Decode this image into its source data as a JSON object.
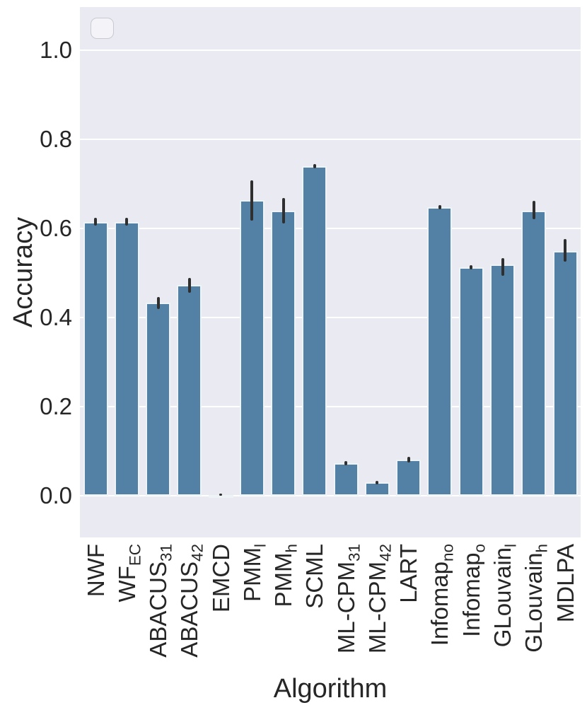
{
  "chart_data": {
    "type": "bar",
    "title": "",
    "xlabel": "Algorithm",
    "ylabel": "Accuracy",
    "yticks": [
      "0.0",
      "0.2",
      "0.4",
      "0.6",
      "0.8",
      "1.0"
    ],
    "ytick_values": [
      0.0,
      0.2,
      0.4,
      0.6,
      0.8,
      1.0
    ],
    "ylim": [
      -0.09,
      1.1
    ],
    "grid": "horizontal-white-on-gray",
    "legend": {
      "visible": true,
      "entries": []
    },
    "colors": {
      "bar_fill": "#5381A5",
      "bar_edge": "rgba(255,255,255,0.9)",
      "error_bar": "#2f2f2f",
      "plot_background": "#EAEAF2",
      "text": "#262626"
    },
    "categories": [
      "NWF",
      "WF_EC",
      "ABACUS_31",
      "ABACUS_42",
      "EMCD",
      "PMM_l",
      "PMM_h",
      "SCML",
      "ML-CPM_31",
      "ML-CPM_42",
      "LART",
      "Infomap_no",
      "Infomap_o",
      "GLouvain_l",
      "GLouvain_h",
      "MDLPA"
    ],
    "categories_rich": [
      {
        "main": "NWF",
        "sub": ""
      },
      {
        "main": "WF",
        "sub": "EC"
      },
      {
        "main": "ABACUS",
        "sub": "31"
      },
      {
        "main": "ABACUS",
        "sub": "42"
      },
      {
        "main": "EMCD",
        "sub": ""
      },
      {
        "main": "PMM",
        "sub": "l"
      },
      {
        "main": "PMM",
        "sub": "h"
      },
      {
        "main": "SCML",
        "sub": ""
      },
      {
        "main": "ML-CPM",
        "sub": "31"
      },
      {
        "main": "ML-CPM",
        "sub": "42"
      },
      {
        "main": "LART",
        "sub": ""
      },
      {
        "main": "Infomap",
        "sub": "no"
      },
      {
        "main": "Infomap",
        "sub": "o"
      },
      {
        "main": "GLouvain",
        "sub": "l"
      },
      {
        "main": "GLouvain",
        "sub": "h"
      },
      {
        "main": "MDLPA",
        "sub": ""
      }
    ],
    "values": [
      0.615,
      0.615,
      0.433,
      0.473,
      0.002,
      0.663,
      0.64,
      0.74,
      0.073,
      0.03,
      0.081,
      0.648,
      0.513,
      0.519,
      0.64,
      0.549
    ],
    "error_intervals": [
      [
        0.607,
        0.624
      ],
      [
        0.607,
        0.624
      ],
      [
        0.419,
        0.446
      ],
      [
        0.456,
        0.489
      ],
      [
        0.0,
        0.005
      ],
      [
        0.617,
        0.708
      ],
      [
        0.611,
        0.668
      ],
      [
        0.735,
        0.745
      ],
      [
        0.068,
        0.078
      ],
      [
        0.026,
        0.034
      ],
      [
        0.075,
        0.087
      ],
      [
        0.643,
        0.652
      ],
      [
        0.508,
        0.517
      ],
      [
        0.494,
        0.533
      ],
      [
        0.62,
        0.662
      ],
      [
        0.525,
        0.576
      ]
    ]
  }
}
